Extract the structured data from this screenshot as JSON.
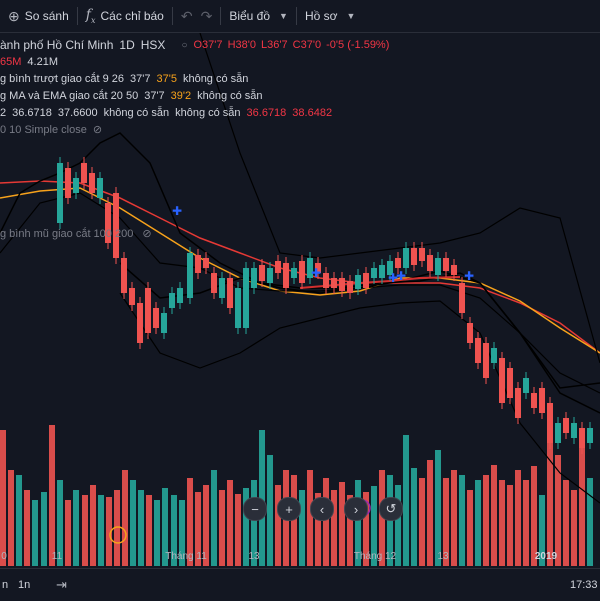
{
  "toolbar": {
    "compare_label": "So sánh",
    "indicators_label": "Các chỉ báo",
    "chart_type_label": "Biểu đồ",
    "profile_label": "Hồ sơ"
  },
  "legend": {
    "symbol": "ành phố Hồ Chí Minh",
    "interval": "1D",
    "exchange": "HSX",
    "open": "O37'7",
    "high": "H38'0",
    "low": "L36'7",
    "close": "C37'0",
    "change": "-0'5 (-1.59%)",
    "volume_1": "65M",
    "volume_2": "4.21M",
    "ind1": {
      "name": "g bình trượt giao cắt 9 26",
      "v1": "37'7",
      "v2": "37'5",
      "v3": "không có sẵn"
    },
    "ind2": {
      "name": "g MA và EMA giao cắt 20 50",
      "v1": "37'7",
      "v2": "39'2",
      "v3": "không có sẵn"
    },
    "ind3": {
      "name": "2",
      "v1": "36.6718",
      "v2": "37.6600",
      "v3": "không có sẵn",
      "v4": "không có sẵn",
      "v5": "36.6718",
      "v6": "38.6482"
    },
    "ind4": {
      "name": "0 10 Simple close"
    },
    "ind5": {
      "name": "g bình mũ giao cắt 100 200"
    }
  },
  "x_axis": [
    "0",
    "11",
    "Tháng 11",
    "13",
    "Tháng 12",
    "13",
    "2019"
  ],
  "bottom": {
    "range_a": "n",
    "range_b": "1n",
    "time": "17:33"
  },
  "colors": {
    "up": "#26a69a",
    "down": "#ef5350",
    "accent_blue": "#2962ff",
    "ma_orange": "#f7a21b",
    "ma_red": "#e53935"
  }
}
